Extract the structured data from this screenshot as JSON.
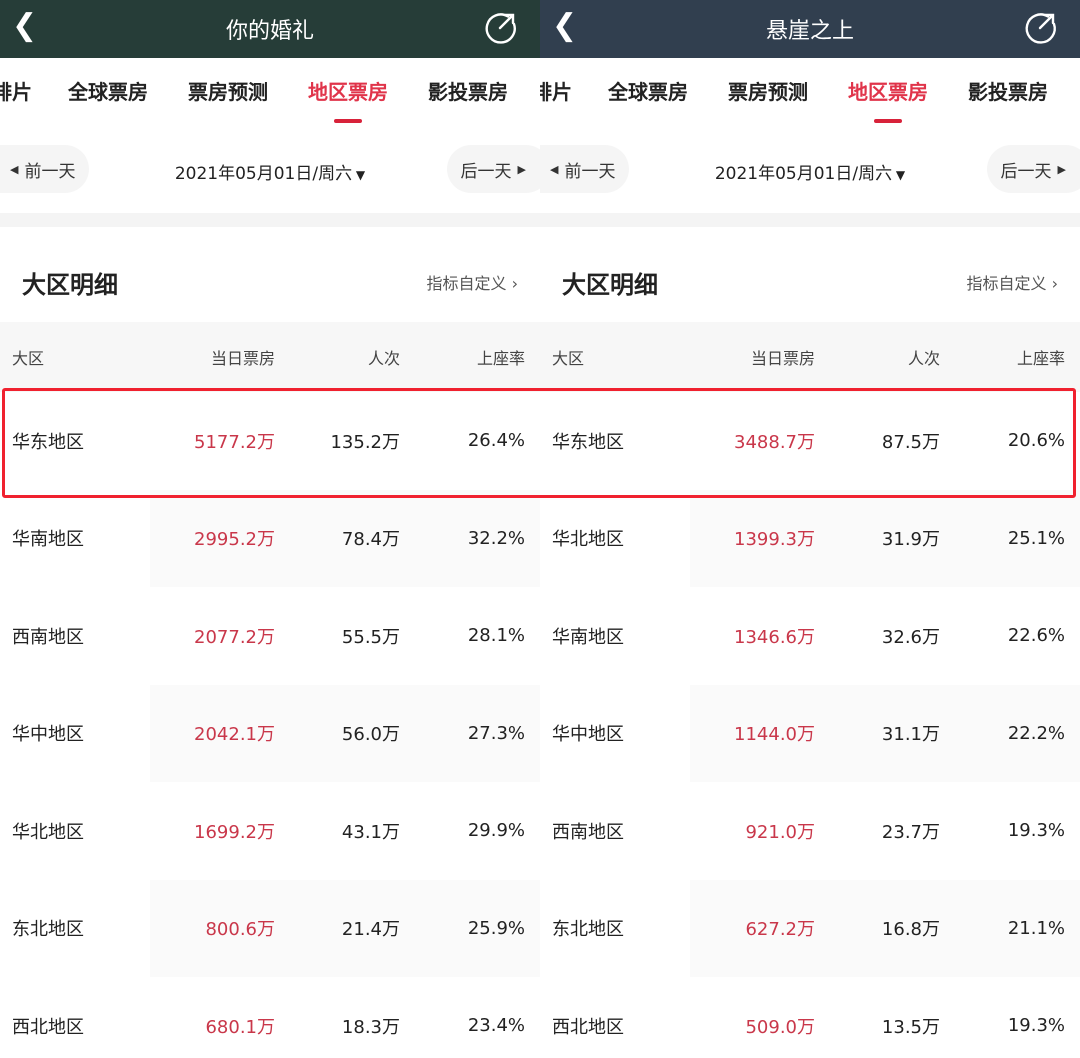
{
  "tabs": [
    "排片",
    "全球票房",
    "票房预测",
    "地区票房",
    "影投票房"
  ],
  "prev_day": "前一天",
  "next_day": "后一天",
  "date": "2021年05月01日/周六",
  "section_title": "大区明细",
  "customize": "指标自定义",
  "columns": [
    "大区",
    "当日票房",
    "人次",
    "上座率"
  ],
  "colors": {
    "left_header": "#263d38",
    "right_header": "#313f4f",
    "accent": "#e0344a",
    "highlight_border": "#f0212f"
  },
  "panels": [
    {
      "title": "你的婚礼",
      "rows": [
        [
          "华东地区",
          "5177.2万",
          "135.2万",
          "26.4%"
        ],
        [
          "华南地区",
          "2995.2万",
          "78.4万",
          "32.2%"
        ],
        [
          "西南地区",
          "2077.2万",
          "55.5万",
          "28.1%"
        ],
        [
          "华中地区",
          "2042.1万",
          "56.0万",
          "27.3%"
        ],
        [
          "华北地区",
          "1699.2万",
          "43.1万",
          "29.9%"
        ],
        [
          "东北地区",
          "800.6万",
          "21.4万",
          "25.9%"
        ],
        [
          "西北地区",
          "680.1万",
          "18.3万",
          "23.4%"
        ]
      ]
    },
    {
      "title": "悬崖之上",
      "rows": [
        [
          "华东地区",
          "3488.7万",
          "87.5万",
          "20.6%"
        ],
        [
          "华北地区",
          "1399.3万",
          "31.9万",
          "25.1%"
        ],
        [
          "华南地区",
          "1346.6万",
          "32.6万",
          "22.6%"
        ],
        [
          "华中地区",
          "1144.0万",
          "31.1万",
          "22.2%"
        ],
        [
          "西南地区",
          "921.0万",
          "23.7万",
          "19.3%"
        ],
        [
          "东北地区",
          "627.2万",
          "16.8万",
          "21.1%"
        ],
        [
          "西北地区",
          "509.0万",
          "13.5万",
          "19.3%"
        ]
      ]
    }
  ]
}
